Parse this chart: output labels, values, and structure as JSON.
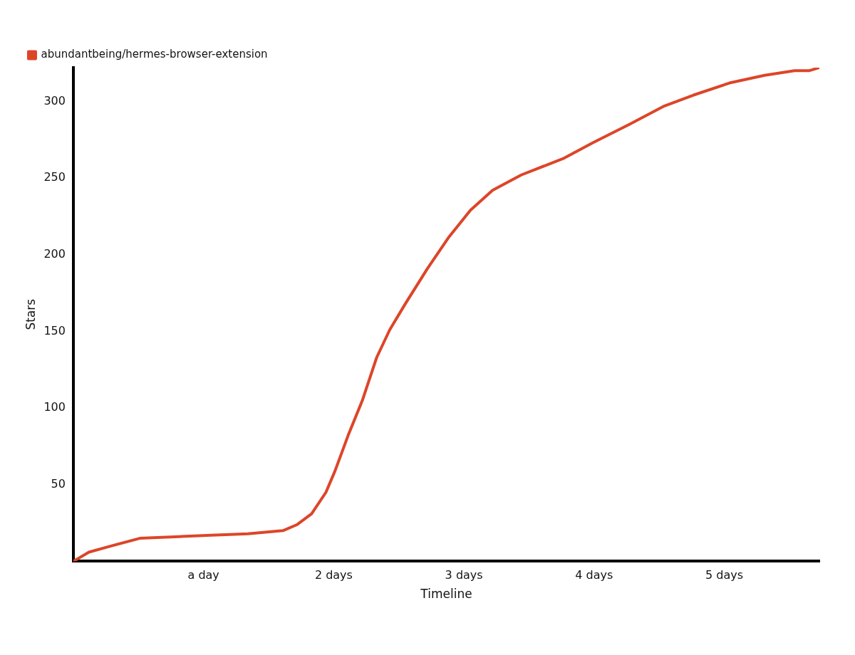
{
  "chart_data": {
    "type": "line",
    "xlabel": "Timeline",
    "ylabel": "Stars",
    "x": [
      0,
      0.12,
      0.29,
      0.51,
      0.78,
      1.06,
      1.34,
      1.61,
      1.72,
      1.83,
      1.94,
      2.01,
      2.11,
      2.22,
      2.33,
      2.43,
      2.55,
      2.72,
      2.88,
      3.05,
      3.22,
      3.44,
      3.77,
      3.99,
      4.27,
      4.54,
      4.76,
      5.04,
      5.31,
      5.54,
      5.65,
      5.73
    ],
    "series": [
      {
        "name": "abundantbeing/hermes-browser-extension",
        "color": "#dd4528",
        "values": [
          0,
          6,
          10,
          15,
          16,
          17,
          18,
          20,
          24,
          31,
          45,
          59,
          82,
          105,
          133,
          151,
          168,
          191,
          211,
          229,
          242,
          252,
          263,
          273,
          285,
          297,
          304,
          312,
          317,
          320,
          320,
          322
        ]
      }
    ],
    "xlim": [
      0,
      5.73
    ],
    "xticks": [
      {
        "value": 1,
        "label": "a day"
      },
      {
        "value": 2,
        "label": "2 days"
      },
      {
        "value": 3,
        "label": "3 days"
      },
      {
        "value": 4,
        "label": "4 days"
      },
      {
        "value": 5,
        "label": "5 days"
      }
    ],
    "ylim": [
      0,
      322
    ],
    "yticks": [
      50,
      100,
      150,
      200,
      250,
      300
    ],
    "grid": false,
    "legend": "top left",
    "marker": "none",
    "line_style": "solid"
  }
}
